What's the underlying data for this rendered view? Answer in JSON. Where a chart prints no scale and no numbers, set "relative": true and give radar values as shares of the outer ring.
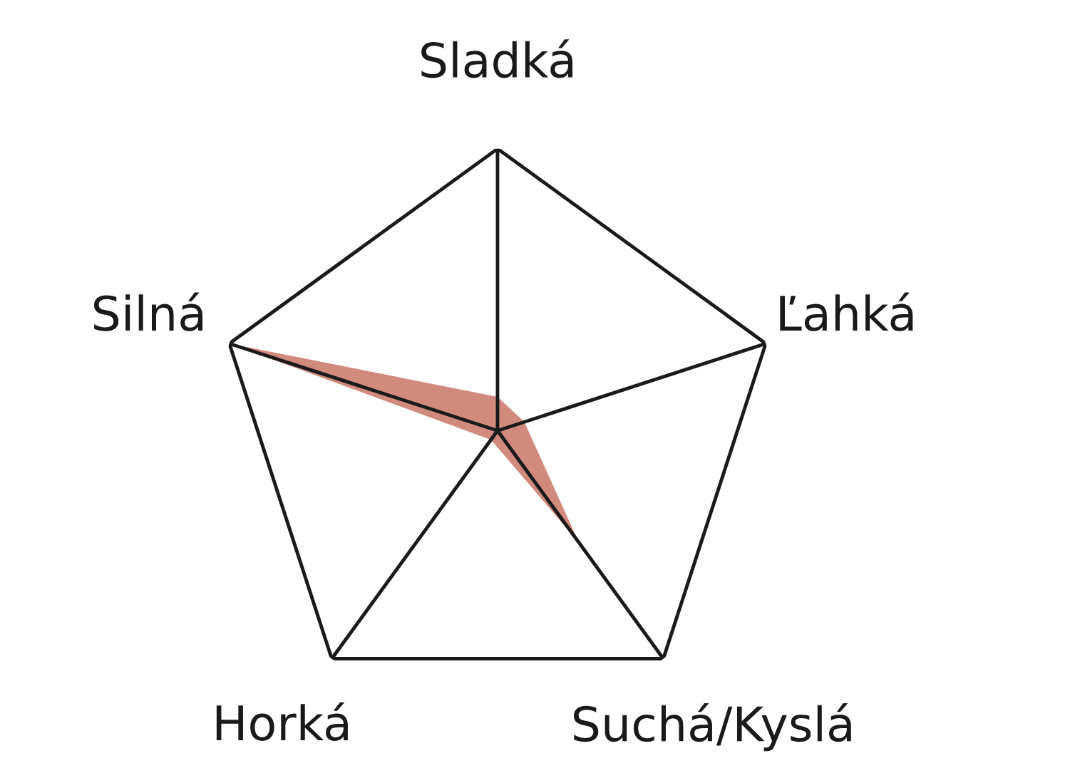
{
  "chart_data": {
    "type": "radar",
    "relative": true,
    "grid": true,
    "categories": [
      "Sladká",
      "Ľahká",
      "Suchá/Kyslá",
      "Horká",
      "Silná"
    ],
    "series": [
      {
        "color": "#d08b7c",
        "values": [
          0.12,
          0.1,
          0.49,
          0.04,
          1
        ]
      }
    ]
  }
}
